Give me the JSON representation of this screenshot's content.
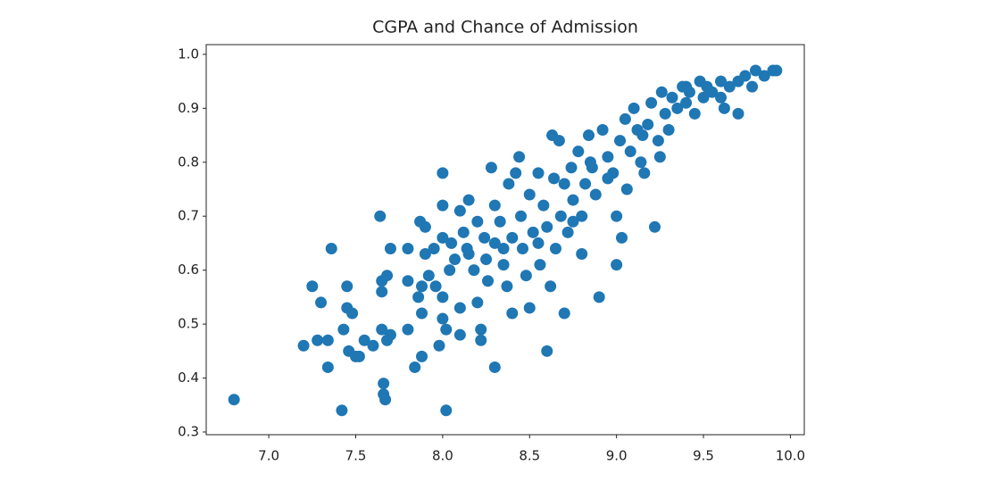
{
  "chart_data": {
    "type": "scatter",
    "title": "CGPA and Chance of Admission",
    "color": "#1f77b4",
    "x": [
      6.8,
      7.2,
      7.25,
      7.28,
      7.3,
      7.34,
      7.34,
      7.36,
      7.42,
      7.43,
      7.45,
      7.45,
      7.46,
      7.48,
      7.5,
      7.52,
      7.55,
      7.6,
      7.64,
      7.65,
      7.65,
      7.65,
      7.66,
      7.66,
      7.67,
      7.68,
      7.7,
      7.7,
      7.68,
      7.8,
      7.8,
      7.8,
      7.84,
      7.86,
      7.87,
      7.88,
      7.88,
      7.88,
      7.9,
      7.9,
      7.92,
      7.95,
      7.96,
      7.98,
      8.0,
      8.0,
      8.0,
      8.0,
      8.0,
      8.02,
      8.02,
      8.04,
      8.05,
      8.07,
      8.1,
      8.1,
      8.1,
      8.12,
      8.14,
      8.15,
      8.18,
      8.2,
      8.2,
      8.22,
      8.22,
      8.24,
      8.25,
      8.26,
      8.28,
      8.3,
      8.3,
      8.3,
      8.33,
      8.35,
      8.37,
      8.38,
      8.4,
      8.4,
      8.42,
      8.44,
      8.45,
      8.46,
      8.48,
      8.5,
      8.5,
      8.52,
      8.55,
      8.56,
      8.58,
      8.6,
      8.6,
      8.62,
      8.63,
      8.64,
      8.65,
      8.67,
      8.68,
      8.7,
      8.7,
      8.72,
      8.74,
      8.75,
      8.78,
      8.8,
      8.8,
      8.82,
      8.84,
      8.86,
      8.88,
      8.9,
      8.92,
      8.95,
      8.98,
      9.0,
      9.0,
      9.02,
      9.03,
      9.05,
      9.06,
      9.08,
      9.1,
      9.12,
      9.14,
      9.16,
      9.18,
      9.2,
      9.22,
      9.24,
      9.26,
      9.28,
      9.3,
      9.32,
      9.35,
      9.38,
      9.4,
      9.42,
      9.45,
      9.48,
      9.5,
      9.52,
      9.55,
      9.6,
      9.62,
      9.65,
      9.7,
      9.7,
      9.74,
      9.78,
      9.8,
      9.85,
      9.9,
      9.92,
      9.6,
      9.25,
      8.95,
      8.85,
      8.55,
      8.35,
      8.15,
      9.4,
      9.15,
      8.75
    ],
    "values": [
      0.36,
      0.46,
      0.57,
      0.47,
      0.54,
      0.42,
      0.47,
      0.64,
      0.34,
      0.49,
      0.57,
      0.53,
      0.45,
      0.52,
      0.44,
      0.44,
      0.47,
      0.46,
      0.7,
      0.58,
      0.56,
      0.49,
      0.39,
      0.37,
      0.36,
      0.59,
      0.64,
      0.48,
      0.47,
      0.64,
      0.58,
      0.49,
      0.42,
      0.55,
      0.69,
      0.57,
      0.52,
      0.44,
      0.68,
      0.63,
      0.59,
      0.64,
      0.57,
      0.46,
      0.78,
      0.72,
      0.66,
      0.55,
      0.51,
      0.49,
      0.34,
      0.6,
      0.65,
      0.62,
      0.71,
      0.53,
      0.48,
      0.67,
      0.64,
      0.73,
      0.6,
      0.69,
      0.54,
      0.49,
      0.47,
      0.66,
      0.62,
      0.58,
      0.79,
      0.72,
      0.65,
      0.42,
      0.69,
      0.61,
      0.57,
      0.76,
      0.66,
      0.52,
      0.78,
      0.81,
      0.7,
      0.64,
      0.59,
      0.74,
      0.53,
      0.67,
      0.78,
      0.61,
      0.72,
      0.68,
      0.45,
      0.57,
      0.85,
      0.77,
      0.64,
      0.84,
      0.7,
      0.76,
      0.52,
      0.67,
      0.79,
      0.73,
      0.82,
      0.7,
      0.63,
      0.76,
      0.85,
      0.79,
      0.74,
      0.55,
      0.86,
      0.81,
      0.78,
      0.7,
      0.61,
      0.84,
      0.66,
      0.88,
      0.75,
      0.82,
      0.9,
      0.86,
      0.8,
      0.78,
      0.87,
      0.91,
      0.68,
      0.84,
      0.93,
      0.89,
      0.86,
      0.92,
      0.9,
      0.94,
      0.91,
      0.93,
      0.89,
      0.95,
      0.92,
      0.94,
      0.93,
      0.95,
      0.9,
      0.94,
      0.89,
      0.95,
      0.96,
      0.94,
      0.97,
      0.96,
      0.97,
      0.97,
      0.92,
      0.81,
      0.77,
      0.8,
      0.65,
      0.64,
      0.63,
      0.94,
      0.85,
      0.69
    ],
    "xlim": [
      6.64,
      10.08
    ],
    "ylim": [
      0.295,
      1.018
    ],
    "xticks": [
      {
        "value": 7.0,
        "label": "7.0"
      },
      7.5,
      {
        "value": 8.0,
        "label": "8.0"
      },
      8.5,
      {
        "value": 9.0,
        "label": "9.0"
      },
      9.5,
      {
        "value": 10.0,
        "label": "10.0"
      }
    ],
    "yticks": [
      0.3,
      0.4,
      0.5,
      0.6,
      0.7,
      0.8,
      0.9,
      {
        "value": 1.0,
        "label": "1.0"
      }
    ]
  }
}
